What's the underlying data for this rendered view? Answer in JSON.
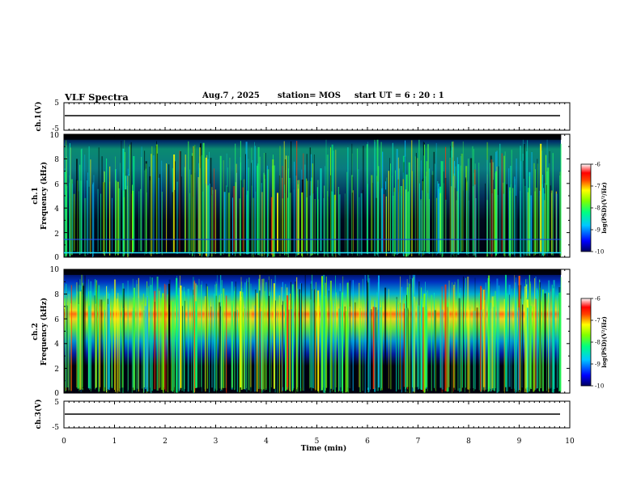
{
  "header": {
    "title": "VLF Spectra",
    "date": "Aug.7 , 2025",
    "station": "station= MOS",
    "start": "start UT = 6 : 20 : 1"
  },
  "chart_data": [
    {
      "type": "line",
      "panel": "ch1-waveform",
      "ylabel": "ch.1(V)",
      "ylim": [
        -5,
        5
      ],
      "yticks": [
        5,
        -5
      ],
      "series": [
        {
          "x": [
            0,
            9.83
          ],
          "y": [
            0,
            0
          ]
        }
      ]
    },
    {
      "type": "heatmap",
      "panel": "ch1-spectrogram",
      "ylabel": "ch.1 Frequency (kHz)",
      "ylim": [
        0,
        10
      ],
      "yticks": [
        0,
        2,
        4,
        6,
        8,
        10
      ],
      "xlim": [
        0,
        10
      ],
      "data_extent_min": [
        0,
        9.83
      ],
      "colorbar": {
        "label": "log(PSD)(V²/Hz)",
        "range": [
          -10,
          -6
        ],
        "ticks": [
          -6,
          -7,
          -8,
          -9,
          -10
        ]
      }
    },
    {
      "type": "heatmap",
      "panel": "ch2-spectrogram",
      "ylabel": "ch.2 Frequency (kHz)",
      "ylim": [
        0,
        10
      ],
      "yticks": [
        0,
        2,
        4,
        6,
        8,
        10
      ],
      "xlim": [
        0,
        10
      ],
      "data_extent_min": [
        0,
        9.83
      ],
      "colorbar": {
        "label": "log(PSD)(V²/Hz)",
        "range": [
          -10,
          -6
        ],
        "ticks": [
          -6,
          -7,
          -8,
          -9,
          -10
        ]
      }
    },
    {
      "type": "line",
      "panel": "ch3-waveform",
      "ylabel": "ch.3(V)",
      "ylim": [
        -5,
        5
      ],
      "yticks": [
        5,
        -5
      ],
      "series": [
        {
          "x": [
            0,
            9.83
          ],
          "y": [
            0,
            0
          ]
        }
      ]
    }
  ],
  "xaxis": {
    "label": "Time (min)",
    "range": [
      0,
      10
    ],
    "ticks": [
      "0",
      "1",
      "2",
      "3",
      "4",
      "5",
      "6",
      "7",
      "8",
      "9",
      "10"
    ]
  },
  "colors": {
    "background": "#000000",
    "colormap": [
      "#000080",
      "#0000ff",
      "#00ffff",
      "#00ff00",
      "#ffff00",
      "#ff8000",
      "#ff0000",
      "#ffffff"
    ]
  }
}
